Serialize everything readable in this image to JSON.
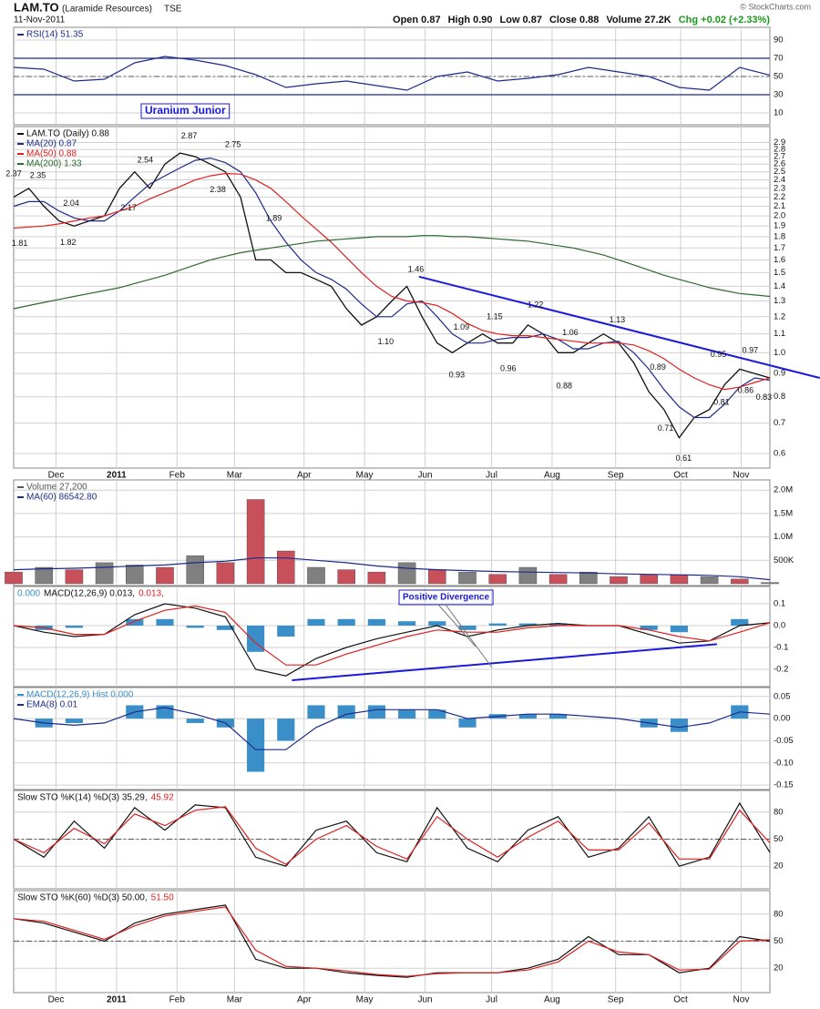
{
  "header": {
    "symbol": "LAM.TO",
    "company": "(Laramide Resources)",
    "exchange": "TSE",
    "date": "11-Nov-2011",
    "stats": [
      "Open 0.87",
      "High 0.90",
      "Low 0.87",
      "Close 0.88",
      "Volume 27.2K"
    ],
    "change": "Chg +0.02 (+2.33%)",
    "credit": "© StockCharts.com"
  },
  "chart_data": [
    {
      "type": "line",
      "legend": "stacked",
      "xlim": [
        0,
        25
      ],
      "ylim": [
        0,
        100
      ],
      "yticks": [
        10,
        30,
        50,
        70,
        90
      ],
      "bands": [
        30,
        70
      ],
      "midline": 50,
      "series": [
        {
          "name": "RSI(14) 51.35",
          "color": "#1c2a8c",
          "values": [
            60,
            58,
            45,
            47,
            65,
            72,
            68,
            62,
            52,
            38,
            42,
            45,
            40,
            35,
            50,
            55,
            45,
            48,
            52,
            60,
            55,
            50,
            38,
            35,
            60,
            51.35
          ]
        }
      ]
    },
    {
      "type": "line",
      "log": true,
      "legend": "stacked",
      "note": "Uranium Junior",
      "xlim": [
        0,
        50
      ],
      "ylim": [
        0.56,
        3.13
      ],
      "yticks": [
        0.6,
        0.7,
        0.8,
        0.9,
        {
          "value": 1,
          "label": "1.0"
        },
        1.1,
        1.2,
        1.3,
        1.4,
        1.5,
        1.6,
        1.7,
        1.8,
        1.9,
        {
          "value": 2,
          "label": "2.0"
        },
        2.1,
        2.2,
        2.3,
        2.4,
        2.5,
        2.6,
        2.7,
        2.8,
        2.9
      ],
      "xticks": [
        {
          "value": 2.8,
          "label": "Dec"
        },
        {
          "value": 6.8,
          "label": "2011"
        },
        {
          "value": 10.8,
          "label": "Feb"
        },
        {
          "value": 14.6,
          "label": "Mar"
        },
        {
          "value": 19.2,
          "label": "Apr"
        },
        {
          "value": 23.2,
          "label": "May"
        },
        {
          "value": 27.2,
          "label": "Jun"
        },
        {
          "value": 31.6,
          "label": "Jul"
        },
        {
          "value": 35.6,
          "label": "Aug"
        },
        {
          "value": 39.8,
          "label": "Sep"
        },
        {
          "value": 44.1,
          "label": "Oct"
        },
        {
          "value": 48.1,
          "label": "Nov"
        }
      ],
      "series": [
        {
          "name": "LAM.TO (Daily) 0.88",
          "color": "#111111",
          "values": [
            2.2,
            2.3,
            2.1,
            1.95,
            1.9,
            1.95,
            2.0,
            2.3,
            2.5,
            2.3,
            2.6,
            2.75,
            2.7,
            2.6,
            2.5,
            2.2,
            1.6,
            1.6,
            1.5,
            1.5,
            1.45,
            1.4,
            1.25,
            1.15,
            1.2,
            1.3,
            1.4,
            1.2,
            1.05,
            1.0,
            1.05,
            1.1,
            1.05,
            1.05,
            1.15,
            1.1,
            1.0,
            1.0,
            1.05,
            1.1,
            1.05,
            0.95,
            0.82,
            0.75,
            0.65,
            0.72,
            0.75,
            0.85,
            0.92,
            0.9,
            0.88
          ]
        },
        {
          "name": "MA(20) 0.87",
          "color": "#1c2a8c",
          "values": [
            2.1,
            2.15,
            2.15,
            2.05,
            1.98,
            1.95,
            1.95,
            2.05,
            2.2,
            2.35,
            2.45,
            2.55,
            2.65,
            2.68,
            2.62,
            2.5,
            2.25,
            1.95,
            1.75,
            1.6,
            1.5,
            1.45,
            1.38,
            1.28,
            1.2,
            1.2,
            1.28,
            1.3,
            1.2,
            1.1,
            1.05,
            1.05,
            1.07,
            1.08,
            1.08,
            1.1,
            1.07,
            1.02,
            1.02,
            1.05,
            1.06,
            1.0,
            0.92,
            0.83,
            0.76,
            0.72,
            0.72,
            0.77,
            0.84,
            0.88,
            0.87
          ]
        },
        {
          "name": "MA(50) 0.88",
          "color": "#e02020",
          "values": [
            1.88,
            1.89,
            1.9,
            1.92,
            1.95,
            1.98,
            2.0,
            2.05,
            2.1,
            2.18,
            2.25,
            2.32,
            2.4,
            2.45,
            2.48,
            2.47,
            2.4,
            2.3,
            2.15,
            2.0,
            1.87,
            1.75,
            1.62,
            1.5,
            1.4,
            1.33,
            1.3,
            1.29,
            1.27,
            1.22,
            1.16,
            1.12,
            1.1,
            1.09,
            1.09,
            1.08,
            1.07,
            1.06,
            1.05,
            1.05,
            1.05,
            1.04,
            1.01,
            0.97,
            0.92,
            0.88,
            0.85,
            0.83,
            0.84,
            0.86,
            0.88
          ]
        },
        {
          "name": "MA(200) 1.33",
          "color": "#2a6a2a",
          "values": [
            1.25,
            1.27,
            1.29,
            1.31,
            1.33,
            1.35,
            1.37,
            1.39,
            1.42,
            1.45,
            1.48,
            1.52,
            1.56,
            1.6,
            1.63,
            1.66,
            1.68,
            1.7,
            1.72,
            1.74,
            1.76,
            1.77,
            1.78,
            1.79,
            1.8,
            1.8,
            1.8,
            1.81,
            1.81,
            1.8,
            1.8,
            1.79,
            1.78,
            1.77,
            1.76,
            1.74,
            1.72,
            1.7,
            1.67,
            1.64,
            1.6,
            1.56,
            1.52,
            1.48,
            1.45,
            1.42,
            1.39,
            1.37,
            1.35,
            1.34,
            1.33
          ]
        }
      ],
      "trendline": {
        "color": "#1a1adc",
        "x": [
          26.8,
          53.3
        ],
        "values": [
          1.47,
          0.88
        ]
      },
      "annotations": [
        {
          "x": 0,
          "value": 2.37,
          "label": "2.37"
        },
        {
          "x": 1.6,
          "value": 2.35,
          "label": "2.35"
        },
        {
          "x": 0.4,
          "value": 1.81,
          "label": "1.81"
        },
        {
          "x": 3.8,
          "value": 2.04,
          "label": "2.04"
        },
        {
          "x": 3.6,
          "value": 1.82,
          "label": "1.82"
        },
        {
          "x": 8.7,
          "value": 2.54,
          "label": "2.54"
        },
        {
          "x": 7.6,
          "value": 2.17,
          "label": "2.17"
        },
        {
          "x": 11.6,
          "value": 2.87,
          "label": "2.87"
        },
        {
          "x": 13.5,
          "value": 2.38,
          "label": "2.38"
        },
        {
          "x": 14.5,
          "value": 2.75,
          "label": "2.75"
        },
        {
          "x": 17.2,
          "value": 1.89,
          "label": "1.89"
        },
        {
          "x": 26.6,
          "value": 1.46,
          "label": "1.46"
        },
        {
          "x": 24.6,
          "value": 1.1,
          "label": "1.10"
        },
        {
          "x": 29.6,
          "value": 1.09,
          "label": "1.09"
        },
        {
          "x": 29.3,
          "value": 0.93,
          "label": "0.93"
        },
        {
          "x": 31.8,
          "value": 1.15,
          "label": "1.15"
        },
        {
          "x": 32.7,
          "value": 0.96,
          "label": "0.96"
        },
        {
          "x": 34.5,
          "value": 1.22,
          "label": "1.22"
        },
        {
          "x": 36.4,
          "value": 0.88,
          "label": "0.88"
        },
        {
          "x": 36.8,
          "value": 1.06,
          "label": "1.06"
        },
        {
          "x": 39.9,
          "value": 1.13,
          "label": "1.13"
        },
        {
          "x": 42.6,
          "value": 0.89,
          "label": "0.89"
        },
        {
          "x": 43.1,
          "value": 0.71,
          "label": "0.71"
        },
        {
          "x": 44.3,
          "value": 0.61,
          "label": "0.61"
        },
        {
          "x": 46.6,
          "value": 0.95,
          "label": "0.95"
        },
        {
          "x": 48.7,
          "value": 0.97,
          "label": "0.97"
        },
        {
          "x": 46.8,
          "value": 0.81,
          "label": "0.81"
        },
        {
          "x": 48.4,
          "value": 0.86,
          "label": "0.86"
        },
        {
          "x": 49.6,
          "value": 0.83,
          "label": "0.83"
        }
      ]
    },
    {
      "type": "bar",
      "legend": "stacked",
      "xlim": [
        0,
        25
      ],
      "ylim": [
        0,
        2160000
      ],
      "yticks": [
        {
          "value": 500000,
          "label": "500K"
        },
        {
          "value": 1000000,
          "label": "1.0M"
        },
        {
          "value": 1500000,
          "label": "1.5M"
        },
        {
          "value": 2000000,
          "label": "2.0M"
        }
      ],
      "series": [
        {
          "name": "Volume 27,200",
          "color": "#555555",
          "values": [
            250000,
            350000,
            300000,
            450000,
            400000,
            350000,
            600000,
            450000,
            1800000,
            700000,
            350000,
            300000,
            250000,
            450000,
            300000,
            250000,
            200000,
            350000,
            200000,
            250000,
            150000,
            200000,
            180000,
            150000,
            100000,
            27200
          ],
          "colors": [
            "#c8505a",
            "#808080",
            "#c8505a",
            "#808080",
            "#808080",
            "#c8505a",
            "#808080",
            "#c8505a",
            "#c8505a",
            "#c8505a",
            "#808080",
            "#c8505a",
            "#c8505a",
            "#808080",
            "#c8505a",
            "#808080",
            "#c8505a",
            "#808080",
            "#c8505a",
            "#808080",
            "#c8505a",
            "#c8505a",
            "#c8505a",
            "#808080",
            "#c8505a",
            "#808080"
          ]
        },
        {
          "name": "MA(60) 86542.80",
          "color": "#1c2a8c",
          "type": "line",
          "values": [
            300000,
            320000,
            330000,
            350000,
            380000,
            400000,
            450000,
            480000,
            550000,
            550000,
            500000,
            450000,
            380000,
            330000,
            300000,
            280000,
            260000,
            250000,
            240000,
            230000,
            210000,
            200000,
            190000,
            180000,
            150000,
            86542.8
          ]
        }
      ]
    },
    {
      "type": "line",
      "legend": "inline",
      "note": "Positive Divergence",
      "xlim": [
        0,
        25
      ],
      "ylim": [
        -0.275,
        0.175
      ],
      "yticks": [
        0.1,
        {
          "value": 0,
          "label": "0.0"
        },
        -0.1,
        -0.2
      ],
      "series": [
        {
          "name": "0.000",
          "color": "#3a8fc8",
          "type": "bar",
          "values": [
            0,
            -0.02,
            -0.01,
            0,
            0.03,
            0.03,
            -0.01,
            -0.02,
            -0.12,
            -0.05,
            0.03,
            0.03,
            0.03,
            0.02,
            0.02,
            -0.02,
            0.01,
            0.01,
            0.01,
            0,
            0,
            -0.02,
            -0.03,
            0,
            0.03,
            0
          ]
        },
        {
          "name": "MACD(12,26,9) 0.013,",
          "color": "#111111",
          "values": [
            0.0,
            -0.03,
            -0.05,
            -0.04,
            0.05,
            0.1,
            0.08,
            0.04,
            -0.2,
            -0.23,
            -0.15,
            -0.1,
            -0.06,
            -0.03,
            0.0,
            -0.05,
            -0.02,
            0.0,
            0.01,
            0.0,
            0.0,
            -0.04,
            -0.08,
            -0.07,
            0.0,
            0.013
          ]
        },
        {
          "name": "0.013,",
          "color": "#e02020",
          "values": [
            0.0,
            -0.01,
            -0.04,
            -0.04,
            0.02,
            0.07,
            0.09,
            0.06,
            -0.08,
            -0.18,
            -0.18,
            -0.13,
            -0.09,
            -0.05,
            -0.02,
            -0.03,
            -0.03,
            -0.01,
            0.0,
            0.0,
            0.0,
            -0.02,
            -0.05,
            -0.07,
            -0.03,
            0.013
          ]
        }
      ],
      "trendline": {
        "color": "#1a1adc",
        "x": [
          9.2,
          23.25
        ],
        "values": [
          -0.25,
          -0.085
        ]
      }
    },
    {
      "type": "line",
      "legend": "stacked",
      "xlim": [
        0,
        25
      ],
      "ylim": [
        -0.158,
        0.07
      ],
      "yticks": [
        0.05,
        {
          "value": 0,
          "label": "0.00"
        },
        -0.05,
        {
          "value": -0.1,
          "label": "-0.10"
        },
        -0.15
      ],
      "series": [
        {
          "name": "MACD(12,26,9) Hist 0.000",
          "color": "#3a8fc8",
          "type": "bar",
          "values": [
            0,
            -0.02,
            -0.01,
            0,
            0.03,
            0.03,
            -0.01,
            -0.02,
            -0.12,
            -0.05,
            0.03,
            0.03,
            0.03,
            0.02,
            0.02,
            -0.02,
            0.01,
            0.01,
            0.01,
            0,
            0,
            -0.02,
            -0.03,
            0,
            0.03,
            0
          ]
        },
        {
          "name": "EMA(8) 0.01",
          "color": "#1c2a8c",
          "values": [
            0,
            -0.01,
            -0.015,
            -0.01,
            0.015,
            0.025,
            0.01,
            -0.01,
            -0.07,
            -0.07,
            -0.02,
            0.01,
            0.02,
            0.02,
            0.02,
            0,
            0.005,
            0.01,
            0.01,
            0.005,
            0,
            -0.01,
            -0.02,
            -0.01,
            0.015,
            0.01
          ]
        }
      ]
    },
    {
      "type": "line",
      "legend": "inline",
      "xlim": [
        0,
        25
      ],
      "ylim": [
        0,
        100
      ],
      "yticks": [
        20,
        50,
        80
      ],
      "midline": 50,
      "series": [
        {
          "name": "Slow STO %K(14) %D(3) 35.29,",
          "color": "#111111",
          "values": [
            50,
            30,
            70,
            40,
            85,
            60,
            88,
            85,
            30,
            20,
            60,
            70,
            35,
            25,
            85,
            40,
            25,
            60,
            75,
            30,
            40,
            75,
            20,
            30,
            90,
            35.29
          ]
        },
        {
          "name": "45.92",
          "color": "#e02020",
          "values": [
            50,
            35,
            62,
            45,
            78,
            65,
            82,
            86,
            40,
            22,
            50,
            65,
            42,
            28,
            75,
            50,
            30,
            52,
            70,
            38,
            38,
            68,
            28,
            28,
            82,
            45.92
          ]
        }
      ]
    },
    {
      "type": "line",
      "legend": "inline",
      "xlim": [
        0,
        25
      ],
      "ylim": [
        0,
        100
      ],
      "yticks": [
        20,
        50,
        80
      ],
      "midline": 50,
      "xticks": [
        {
          "value": 1.4,
          "label": "Dec"
        },
        {
          "value": 3.4,
          "label": "2011"
        },
        {
          "value": 5.4,
          "label": "Feb"
        },
        {
          "value": 7.3,
          "label": "Mar"
        },
        {
          "value": 9.6,
          "label": "Apr"
        },
        {
          "value": 11.6,
          "label": "May"
        },
        {
          "value": 13.6,
          "label": "Jun"
        },
        {
          "value": 15.8,
          "label": "Jul"
        },
        {
          "value": 17.8,
          "label": "Aug"
        },
        {
          "value": 19.9,
          "label": "Sep"
        },
        {
          "value": 22.05,
          "label": "Oct"
        },
        {
          "value": 24.05,
          "label": "Nov"
        }
      ],
      "series": [
        {
          "name": "Slow STO %K(60) %D(3) 50.00,",
          "color": "#111111",
          "values": [
            75,
            70,
            60,
            50,
            70,
            80,
            85,
            90,
            30,
            20,
            20,
            15,
            12,
            10,
            15,
            15,
            15,
            20,
            30,
            55,
            35,
            35,
            15,
            20,
            55,
            50
          ]
        },
        {
          "name": "51.50",
          "color": "#e02020",
          "values": [
            75,
            72,
            62,
            52,
            67,
            78,
            83,
            88,
            40,
            22,
            20,
            17,
            13,
            11,
            14,
            15,
            15,
            18,
            27,
            50,
            38,
            35,
            18,
            19,
            50,
            51.5
          ]
        }
      ]
    }
  ]
}
